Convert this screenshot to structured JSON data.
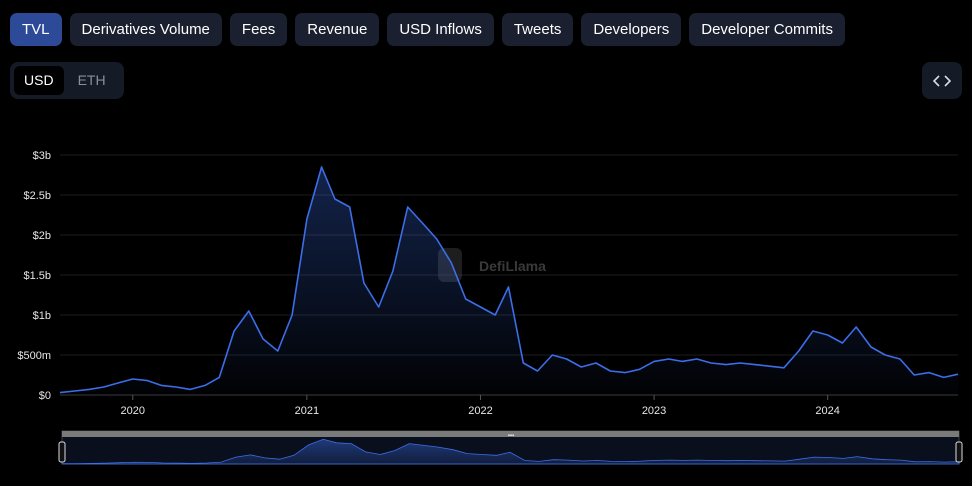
{
  "tabs": [
    {
      "label": "TVL",
      "active": true
    },
    {
      "label": "Derivatives Volume",
      "active": false
    },
    {
      "label": "Fees",
      "active": false
    },
    {
      "label": "Revenue",
      "active": false
    },
    {
      "label": "USD Inflows",
      "active": false
    },
    {
      "label": "Tweets",
      "active": false
    },
    {
      "label": "Developers",
      "active": false
    },
    {
      "label": "Developer Commits",
      "active": false
    }
  ],
  "currency": {
    "options": [
      "USD",
      "ETH"
    ],
    "selected": "USD"
  },
  "embed_icon": "code-icon",
  "watermark": "DefiLlama",
  "colors": {
    "line": "#3b6ee8",
    "active_tab": "#2c4a98",
    "tab": "#1b2030",
    "background": "#000000"
  },
  "chart_data": {
    "type": "area",
    "series": [
      {
        "x": [
          "2019-08",
          "2019-09",
          "2019-10",
          "2019-11",
          "2019-12",
          "2020-01",
          "2020-02",
          "2020-03",
          "2020-04",
          "2020-05",
          "2020-06",
          "2020-07",
          "2020-08",
          "2020-09",
          "2020-10",
          "2020-11",
          "2020-12",
          "2021-01",
          "2021-02",
          "2021-03",
          "2021-04",
          "2021-05",
          "2021-06",
          "2021-07",
          "2021-08",
          "2021-09",
          "2021-10",
          "2021-11",
          "2021-12",
          "2022-01",
          "2022-02",
          "2022-03",
          "2022-04",
          "2022-05",
          "2022-06",
          "2022-07",
          "2022-08",
          "2022-09",
          "2022-10",
          "2022-11",
          "2022-12",
          "2023-01",
          "2023-02",
          "2023-03",
          "2023-04",
          "2023-05",
          "2023-06",
          "2023-07",
          "2023-08",
          "2023-09",
          "2023-10",
          "2023-11",
          "2023-12",
          "2024-01",
          "2024-02",
          "2024-03",
          "2024-04",
          "2024-05",
          "2024-06",
          "2024-07",
          "2024-08",
          "2024-09",
          "2024-10"
        ],
        "y": [
          0.03,
          0.05,
          0.07,
          0.1,
          0.15,
          0.2,
          0.18,
          0.12,
          0.1,
          0.07,
          0.12,
          0.22,
          0.8,
          1.05,
          0.7,
          0.55,
          1.0,
          2.2,
          2.85,
          2.45,
          2.35,
          1.4,
          1.1,
          1.55,
          2.35,
          2.15,
          1.95,
          1.65,
          1.2,
          1.1,
          1.0,
          1.35,
          0.4,
          0.3,
          0.5,
          0.45,
          0.35,
          0.4,
          0.3,
          0.28,
          0.32,
          0.42,
          0.45,
          0.42,
          0.45,
          0.4,
          0.38,
          0.4,
          0.38,
          0.36,
          0.34,
          0.55,
          0.8,
          0.75,
          0.65,
          0.85,
          0.6,
          0.5,
          0.45,
          0.25,
          0.28,
          0.22,
          0.26
        ]
      }
    ],
    "x_ticks": [
      "2020",
      "2021",
      "2022",
      "2023",
      "2024"
    ],
    "y_ticks": [
      "$0",
      "$500m",
      "$1b",
      "$1.5b",
      "$2b",
      "$2.5b",
      "$3b"
    ],
    "y_tick_values": [
      0,
      0.5,
      1,
      1.5,
      2,
      2.5,
      3
    ],
    "ylim": [
      0,
      3
    ],
    "y_unit": "billion USD",
    "grid": true,
    "brush": true
  }
}
